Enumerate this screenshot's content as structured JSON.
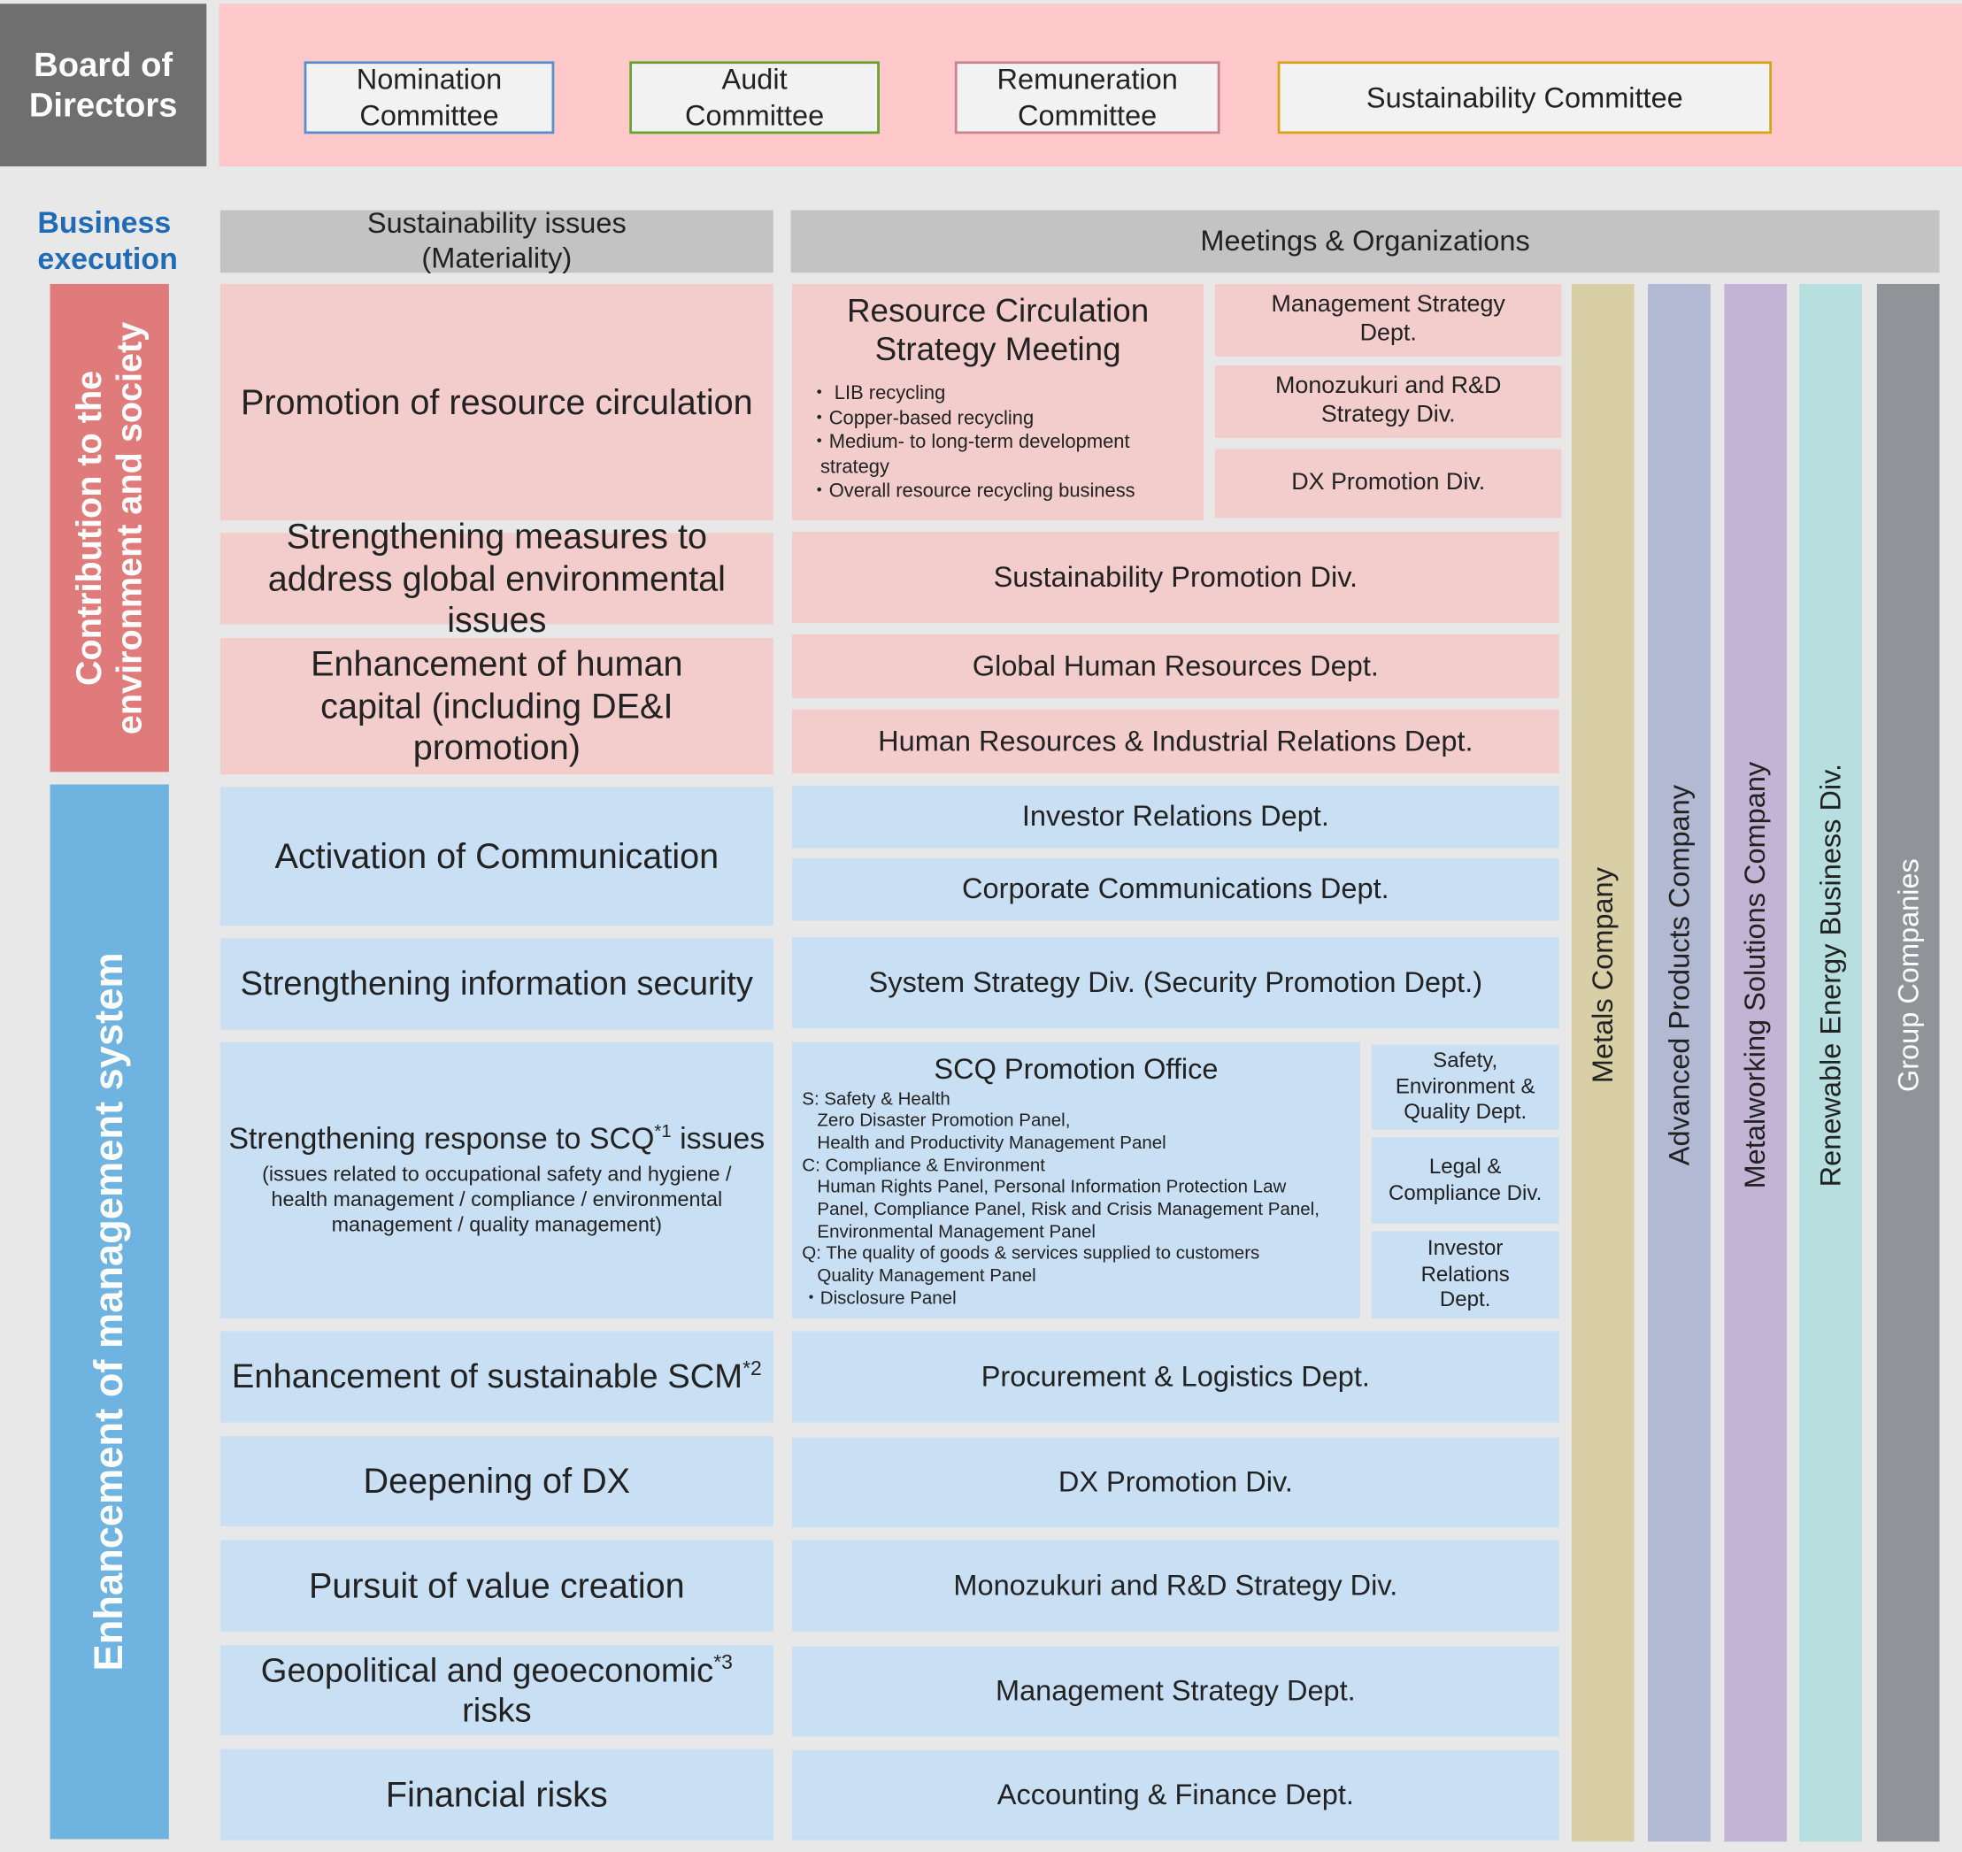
{
  "board": {
    "title_line1": "Board of",
    "title_line2": "Directors"
  },
  "committees": [
    {
      "line1": "Nomination",
      "line2": "Committee",
      "border": "#5b8fc9"
    },
    {
      "line1": "Audit",
      "line2": "Committee",
      "border": "#6aa32f"
    },
    {
      "line1": "Remuneration",
      "line2": "Committee",
      "border": "#c9848e"
    },
    {
      "line1": "Sustainability Committee",
      "border": "#d8a418"
    }
  ],
  "business_execution": {
    "line1": "Business",
    "line2": "execution"
  },
  "headers": {
    "materiality_line1": "Sustainability issues",
    "materiality_line2": "(Materiality)",
    "meetings": "Meetings & Organizations"
  },
  "categories": {
    "environment_line1": "Contribution to the",
    "environment_line2": "environment and society",
    "management": "Enhancement of management system"
  },
  "issues": [
    "Promotion of resource circulation",
    "Strengthening measures to address global environmental issues",
    "Enhancement of human capital (including DE&I promotion)",
    "Activation of Communication",
    "Strengthening information security",
    "Strengthening response to SCQ",
    "Enhancement of sustainable SCM",
    "Deepening of DX",
    "Pursuit of value creation",
    "Geopolitical and geoeconomic",
    "Financial risks"
  ],
  "issue_extras": {
    "scq_sup": "*1",
    "scq_suffix": " issues",
    "scq_note": "(issues related to occupational safety and hygiene / health management / compliance / environmental management / quality management)",
    "scm_sup": "*2",
    "geo_sup": "*3",
    "geo_suffix": "risks"
  },
  "resource_meeting": {
    "title": "Resource Circulation Strategy Meeting",
    "items": [
      "・ LIB recycling",
      "・Copper-based recycling",
      "・Medium- to long-term development",
      "  strategy",
      "・Overall resource recycling business"
    ]
  },
  "resource_depts": [
    "Management Strategy Dept.",
    "Monozukuri and R&D Strategy Div.",
    "DX Promotion Div."
  ],
  "orgs": {
    "sustainability": "Sustainability Promotion Div.",
    "global_hr": "Global Human Resources Dept.",
    "hr_ir": "Human Resources & Industrial Relations Dept.",
    "ir": "Investor Relations Dept.",
    "corp_comm": "Corporate Communications Dept.",
    "system": "System Strategy Div. (Security Promotion Dept.)",
    "procurement": "Procurement & Logistics Dept.",
    "dx": "DX Promotion Div.",
    "monozukuri": "Monozukuri and R&D Strategy Div.",
    "mgmt": "Management Strategy Dept.",
    "accounting": "Accounting & Finance Dept."
  },
  "scq_office": {
    "title": "SCQ Promotion Office",
    "lines": [
      "S: Safety & Health",
      "   Zero Disaster Promotion Panel,",
      "   Health and Productivity Management Panel",
      "C: Compliance & Environment",
      "   Human Rights Panel, Personal Information Protection Law",
      "   Panel, Compliance Panel, Risk and Crisis Management Panel,",
      "   Environmental Management Panel",
      "Q: The quality of goods & services supplied to customers",
      "   Quality Management Panel",
      "・Disclosure Panel"
    ]
  },
  "scq_depts": [
    "Safety, Environment & Quality Dept.",
    "Legal & Compliance Div.",
    "Investor Relations Dept."
  ],
  "companies": [
    {
      "name": "Metals Company",
      "color": "#d9cfa6"
    },
    {
      "name": "Advanced Products Company",
      "color": "#b1b9d3"
    },
    {
      "name": "Metalworking Solutions Company",
      "color": "#c3b4d6"
    },
    {
      "name": "Renewable Energy Business Div.",
      "color": "#b8dfe0"
    },
    {
      "name": "Group Companies",
      "color": "#929399"
    }
  ]
}
